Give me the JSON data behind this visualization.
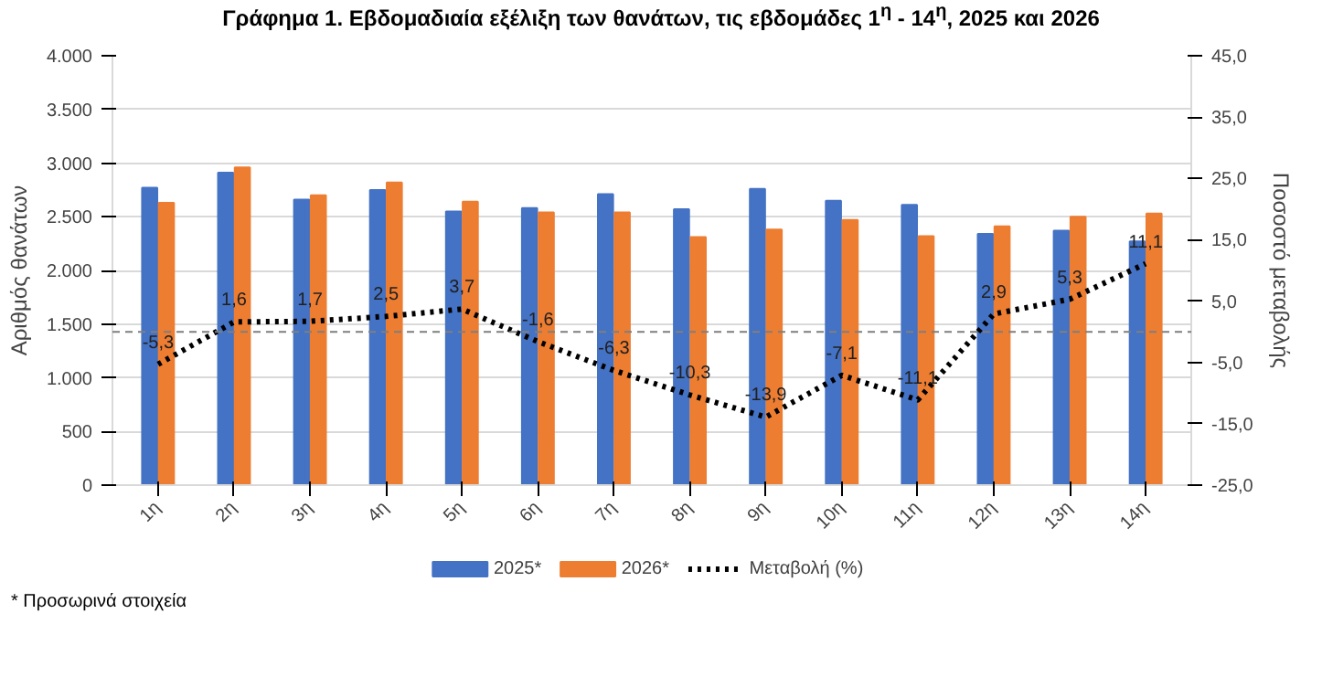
{
  "chart_data": {
    "type": "bar",
    "title": "Γράφημα 1.  Εβδομαδιαία εξέλιξη των θανάτων, τις εβδομάδες 1$^{η}$ - 14$^{η}$, 2025 και 2026",
    "ylabel": "Αριθμός θανάτων",
    "y2label": "Ποσοστό μεταβολής",
    "categories": [
      "1η",
      "2η",
      "3η",
      "4η",
      "5η",
      "6η",
      "7η",
      "8η",
      "9η",
      "10η",
      "11η",
      "12η",
      "13η",
      "14η"
    ],
    "series": [
      {
        "name": "2025*",
        "color": "#4472c4",
        "values": [
          2770,
          2910,
          2660,
          2750,
          2550,
          2580,
          2710,
          2570,
          2760,
          2650,
          2610,
          2340,
          2370,
          2270
        ]
      },
      {
        "name": "2026*",
        "color": "#ed7d31",
        "values": [
          2630,
          2960,
          2700,
          2820,
          2640,
          2540,
          2540,
          2310,
          2380,
          2470,
          2320,
          2410,
          2500,
          2530
        ]
      },
      {
        "name": "Μεταβολή (%)",
        "type": "line",
        "axis": "y2",
        "color": "#000000",
        "line_style": "dotted",
        "values": [
          -5.3,
          1.6,
          1.7,
          2.5,
          3.7,
          -1.6,
          -6.3,
          -10.3,
          -13.9,
          -7.1,
          -11.1,
          2.9,
          5.3,
          11.1
        ],
        "value_labels": [
          "-5,3",
          "1,6",
          "1,7",
          "2,5",
          "3,7",
          "-1,6",
          "-6,3",
          "-10,3",
          "-13,9",
          "-7,1",
          "-11,1",
          "2,9",
          "5,3",
          "11,1"
        ]
      }
    ],
    "ylim": [
      0,
      4000
    ],
    "yticks": [
      {
        "value": 0,
        "label": "0"
      },
      {
        "value": 500,
        "label": "500"
      },
      {
        "value": 1000,
        "label": "1.000"
      },
      {
        "value": 1500,
        "label": "1.500"
      },
      {
        "value": 2000,
        "label": "2.000"
      },
      {
        "value": 2500,
        "label": "2.500"
      },
      {
        "value": 3000,
        "label": "3.000"
      },
      {
        "value": 3500,
        "label": "3.500"
      },
      {
        "value": 4000,
        "label": "4.000"
      }
    ],
    "y2lim": [
      -25,
      45
    ],
    "y2ticks": [
      {
        "value": -25,
        "label": "-25,0"
      },
      {
        "value": -15,
        "label": "-15,0"
      },
      {
        "value": -5,
        "label": "-5,0"
      },
      {
        "value": 5,
        "label": "5,0"
      },
      {
        "value": 15,
        "label": "15,0"
      },
      {
        "value": 25,
        "label": "25,0"
      },
      {
        "value": 35,
        "label": "35,0"
      },
      {
        "value": 45,
        "label": "45,0"
      }
    ],
    "ref_lines": [
      {
        "axis": "y2",
        "value": 0,
        "color": "#7f7f7f",
        "line_style": "dashed"
      }
    ],
    "grid": "y",
    "legend": "bottom",
    "annotations": [
      "* Προσωρινά στοιχεία"
    ]
  }
}
